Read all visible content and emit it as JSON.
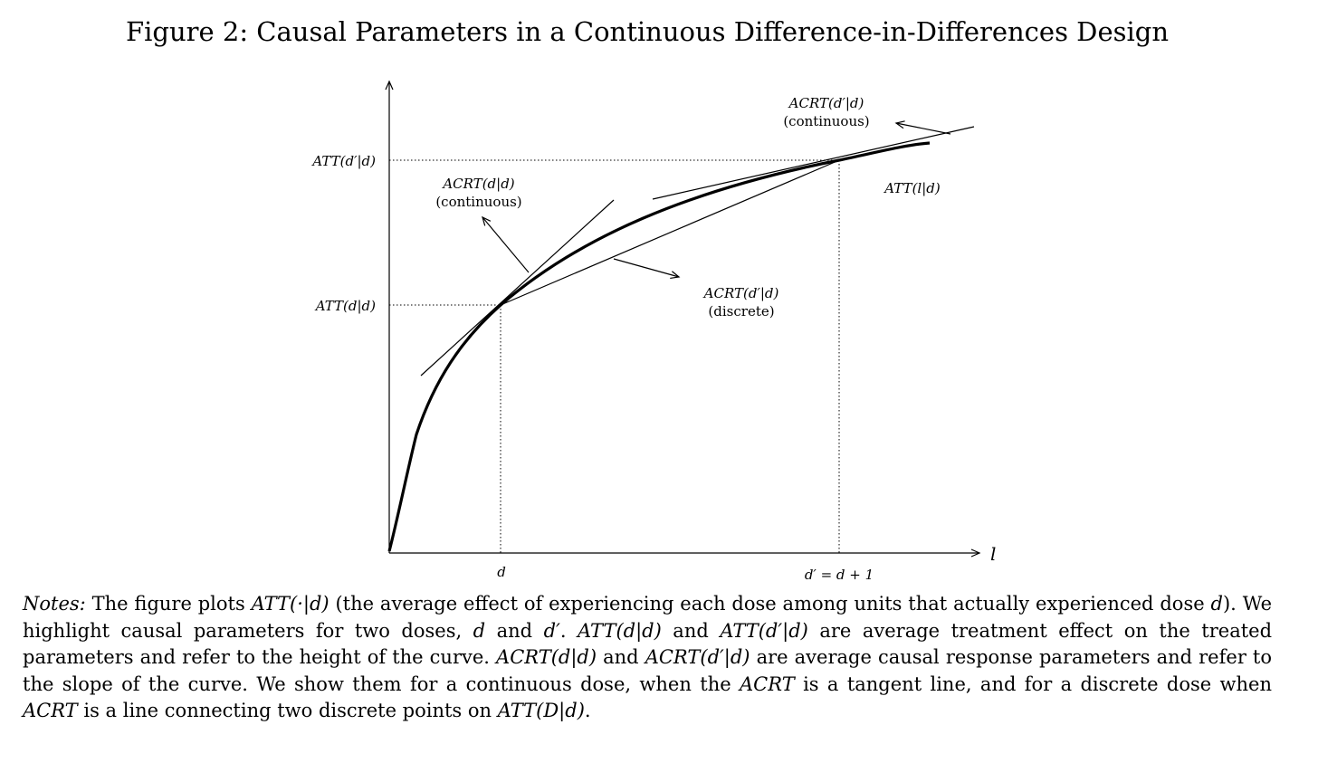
{
  "figure_title": "Figure 2: Causal Parameters in a Continuous Difference-in-Differences Design",
  "axes": {
    "x_label": "l",
    "x_ticks": {
      "d": "d",
      "d_prime": "d′ = d + 1"
    },
    "y_ticks": {
      "att_dd": "ATT(d|d)",
      "att_dprime_d": "ATT(d′|d)"
    }
  },
  "curve_label": "ATT(l|d)",
  "annotations": {
    "acrt_dd_continuous": {
      "name": "ACRT(d|d)",
      "type": "(continuous)"
    },
    "acrt_dprime_d_continuous": {
      "name": "ACRT(d′|d)",
      "type": "(continuous)"
    },
    "acrt_dprime_d_discrete": {
      "name": "ACRT(d′|d)",
      "type": "(discrete)"
    }
  },
  "notes": {
    "lead": "Notes:",
    "s1": " The figure plots ",
    "m1": "ATT(·|d)",
    "s2": " (the average effect of experiencing each dose among units that actually experienced dose ",
    "m2": "d",
    "s3": "). We highlight causal parameters for two doses, ",
    "m3": "d",
    "s4": " and ",
    "m4": "d′",
    "s5": ".  ",
    "m5": "ATT(d|d)",
    "s6": " and ",
    "m6": "ATT(d′|d)",
    "s7": " are average treatment effect on the treated parameters and refer to the height of the curve. ",
    "m7": "ACRT(d|d)",
    "s8": " and ",
    "m8": "ACRT(d′|d)",
    "s9": " are average causal response parameters and refer to the slope of the curve. We show them for a continuous dose, when the ",
    "m9": "ACRT",
    "s10": " is a tangent line, and for a discrete dose when ",
    "m10": "ACRT",
    "s11": " is a line connecting two discrete points on ",
    "m11": "ATT(D|d)",
    "s12": "."
  }
}
